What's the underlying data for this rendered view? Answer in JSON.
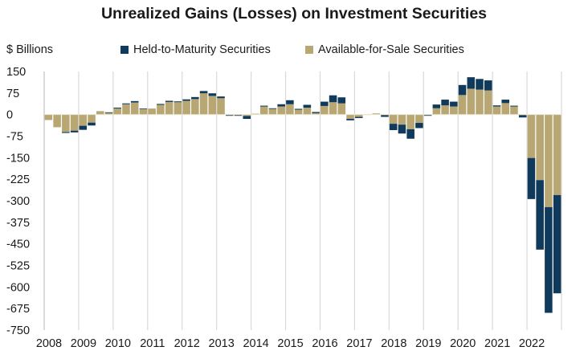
{
  "chart_data": {
    "type": "bar",
    "stacked": true,
    "title": "Unrealized Gains (Losses) on Investment Securities",
    "ylabel": "$ Billions",
    "xlabel": "",
    "ylim": [
      -750,
      150
    ],
    "yticks": [
      150,
      75,
      0,
      -75,
      -150,
      -225,
      -300,
      -375,
      -450,
      -525,
      -600,
      -675,
      -750
    ],
    "ytick_labels": [
      "150",
      "75",
      "0",
      "-75",
      "-150",
      "-225",
      "-300",
      "-375",
      "-450",
      "-525",
      "-600",
      "-675",
      "-750"
    ],
    "xtick_labels": [
      "2008",
      "2009",
      "2010",
      "2011",
      "2012",
      "2013",
      "2014",
      "2015",
      "2016",
      "2017",
      "2018",
      "2019",
      "2020",
      "2021",
      "2022"
    ],
    "periods_per_year": 4,
    "legend_position": "top",
    "grid": "vertical year lines",
    "series": [
      {
        "name": "Held-to-Maturity Securities",
        "color": "#0f3a5b",
        "values": [
          0,
          0,
          -3,
          -6,
          -14,
          -10,
          0,
          2,
          3,
          3,
          5,
          2,
          0,
          3,
          4,
          3,
          5,
          7,
          8,
          9,
          6,
          -2,
          -2,
          -10,
          0,
          3,
          2,
          8,
          14,
          3,
          10,
          4,
          15,
          24,
          21,
          -5,
          -4,
          0,
          0,
          -6,
          -22,
          -31,
          -33,
          -18,
          -1,
          13,
          20,
          17,
          35,
          40,
          37,
          35,
          4,
          12,
          3,
          -8,
          -143,
          -242,
          -368,
          -342
        ]
      },
      {
        "name": "Available-for-Sale Securities",
        "color": "#b8a772",
        "values": [
          -19,
          -44,
          -61,
          -56,
          -39,
          -28,
          12,
          6,
          21,
          36,
          42,
          19,
          21,
          34,
          44,
          43,
          48,
          54,
          74,
          65,
          57,
          -2,
          -2,
          -5,
          3,
          28,
          20,
          28,
          36,
          17,
          24,
          5,
          30,
          43,
          39,
          -15,
          -8,
          1,
          4,
          -2,
          -32,
          -35,
          -51,
          -29,
          -2,
          22,
          32,
          28,
          68,
          90,
          87,
          84,
          28,
          40,
          28,
          -2,
          -151,
          -228,
          -322,
          -280
        ]
      }
    ]
  }
}
